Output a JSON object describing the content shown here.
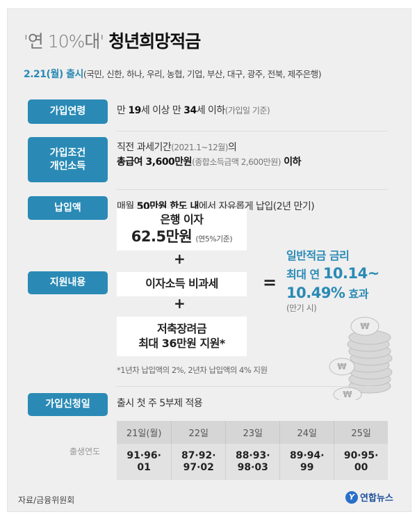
{
  "title": {
    "quote": "'연 10%대'",
    "main": "청년희망적금"
  },
  "launch": {
    "date": "2.21(월) 출시",
    "banks": "(국민, 신한, 하나, 우리, 농협, 기업, 부산, 대구, 광주, 전북, 제주은행)"
  },
  "age": {
    "label": "가입연령",
    "pre": "만 ",
    "a": "19",
    "mid": "세 이상 만 ",
    "b": "34",
    "post": "세 이하",
    "note": "(가입일 기준)"
  },
  "income": {
    "label_line1": "가입조건",
    "label_line2": "개인소득",
    "line1": "직전 과세기간",
    "line1_note": "(2021.1~12월)",
    "line1_post": "의",
    "line2_bold": "총급여 3,600만원",
    "line2_note": "(종합소득금액 2,600만원)",
    "line2_post": " 이하"
  },
  "payment": {
    "label": "납입액",
    "pre": "매월 ",
    "bold": "50만원 한도 내",
    "post": "에서 자유롭게 납입(2년 만기)"
  },
  "support": {
    "label": "지원내용",
    "box1_line1": "은행 이자",
    "box1_amount": "62.5만원",
    "box1_note": "(연5%기준)",
    "plus": "+",
    "box2": "이자소득 비과세",
    "box3_line1": "저축장려금",
    "box3_line2": "최대 36만원 지원*",
    "equals": "=",
    "result_line1": "일반적금 금리",
    "result_line2_pre": "최대 연 ",
    "result_line2_num": "10.14~",
    "result_line3_num": "10.49%",
    "result_line3_post": " 효과",
    "result_note": "(만기 시)",
    "footnote": "*1년차 납입액의 2%, 2년차 납입액의 4% 지원"
  },
  "apply": {
    "label": "가입신청일",
    "text": "출시 첫 주 5부제 적용",
    "row_header": "출생연도",
    "columns": [
      "21일(월)",
      "22일",
      "23일",
      "24일",
      "25일"
    ],
    "years": [
      [
        "91·96·",
        "01"
      ],
      [
        "87·92·",
        "97·02"
      ],
      [
        "88·93·",
        "98·03"
      ],
      [
        "89·94·",
        "99"
      ],
      [
        "90·95·",
        "00"
      ]
    ]
  },
  "source": "자료/금융위원회",
  "logo": "연합뉴스",
  "colors": {
    "accent": "#2a8ab5",
    "background": "#efefef"
  },
  "icons": {
    "coins": "won-coin-stack-icon"
  }
}
